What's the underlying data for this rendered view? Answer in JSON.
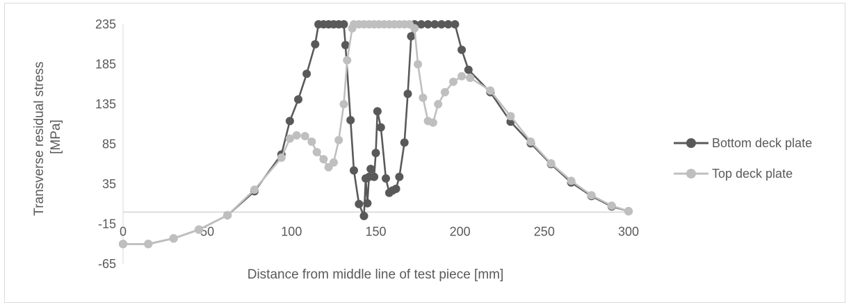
{
  "chart_data": {
    "type": "line",
    "title": "",
    "xlabel": "Distance from middle line of test piece [mm]",
    "ylabel": "Transverse residual stress [MPa]",
    "ylabel_lines": [
      "Transverse residual stress",
      "[MPa]"
    ],
    "xlim": [
      0,
      300
    ],
    "ylim": [
      -65,
      235
    ],
    "xticks": [
      "0",
      "50",
      "100",
      "150",
      "200",
      "250",
      "300"
    ],
    "yticks": [
      "235",
      "185",
      "135",
      "85",
      "35",
      "-15",
      "-65"
    ],
    "grid": false,
    "legend_position": "right",
    "series": [
      {
        "name": "Bottom deck plate",
        "color": "#595959",
        "points": [
          [
            0,
            -40
          ],
          [
            15,
            -40
          ],
          [
            30,
            -33
          ],
          [
            45,
            -22
          ],
          [
            62,
            -4
          ],
          [
            78,
            26
          ],
          [
            94,
            72
          ],
          [
            99,
            114
          ],
          [
            104,
            141
          ],
          [
            109,
            173
          ],
          [
            114,
            210
          ],
          [
            116,
            235
          ],
          [
            119,
            235
          ],
          [
            122,
            235
          ],
          [
            125,
            235
          ],
          [
            128,
            235
          ],
          [
            131,
            235
          ],
          [
            132,
            209
          ],
          [
            135,
            115
          ],
          [
            137,
            52
          ],
          [
            140,
            10
          ],
          [
            143,
            -5
          ],
          [
            144,
            42
          ],
          [
            145,
            11
          ],
          [
            146,
            44
          ],
          [
            147,
            54
          ],
          [
            149,
            44
          ],
          [
            150,
            74
          ],
          [
            151,
            126
          ],
          [
            153,
            106
          ],
          [
            156,
            42
          ],
          [
            158,
            24
          ],
          [
            160,
            27
          ],
          [
            162,
            29
          ],
          [
            164,
            44
          ],
          [
            167,
            87
          ],
          [
            169,
            148
          ],
          [
            171,
            220
          ],
          [
            173,
            235
          ],
          [
            177,
            235
          ],
          [
            181,
            235
          ],
          [
            185,
            235
          ],
          [
            189,
            235
          ],
          [
            193,
            235
          ],
          [
            197,
            235
          ],
          [
            201,
            203
          ],
          [
            205,
            178
          ],
          [
            218,
            150
          ],
          [
            230,
            113
          ],
          [
            242,
            86
          ],
          [
            254,
            60
          ],
          [
            266,
            37
          ],
          [
            278,
            20
          ],
          [
            290,
            7
          ],
          [
            300,
            1
          ]
        ]
      },
      {
        "name": "Top deck plate",
        "color": "#bfbfbf",
        "points": [
          [
            0,
            -40
          ],
          [
            15,
            -40
          ],
          [
            30,
            -33
          ],
          [
            45,
            -22
          ],
          [
            62,
            -4
          ],
          [
            78,
            28
          ],
          [
            94,
            68
          ],
          [
            99,
            92
          ],
          [
            103,
            96
          ],
          [
            108,
            95
          ],
          [
            112,
            88
          ],
          [
            115,
            75
          ],
          [
            119,
            66
          ],
          [
            122,
            56
          ],
          [
            125,
            62
          ],
          [
            128,
            90
          ],
          [
            131,
            135
          ],
          [
            133,
            190
          ],
          [
            136,
            230
          ],
          [
            137,
            235
          ],
          [
            140,
            235
          ],
          [
            143,
            235
          ],
          [
            146,
            235
          ],
          [
            149,
            235
          ],
          [
            152,
            235
          ],
          [
            155,
            235
          ],
          [
            158,
            235
          ],
          [
            161,
            235
          ],
          [
            164,
            235
          ],
          [
            167,
            235
          ],
          [
            170,
            235
          ],
          [
            173,
            230
          ],
          [
            175,
            185
          ],
          [
            178,
            143
          ],
          [
            181,
            114
          ],
          [
            184,
            112
          ],
          [
            187,
            135
          ],
          [
            191,
            150
          ],
          [
            196,
            163
          ],
          [
            201,
            170
          ],
          [
            206,
            168
          ],
          [
            218,
            152
          ],
          [
            230,
            120
          ],
          [
            242,
            88
          ],
          [
            254,
            61
          ],
          [
            266,
            39
          ],
          [
            278,
            21
          ],
          [
            290,
            8
          ],
          [
            300,
            1
          ]
        ]
      }
    ]
  }
}
